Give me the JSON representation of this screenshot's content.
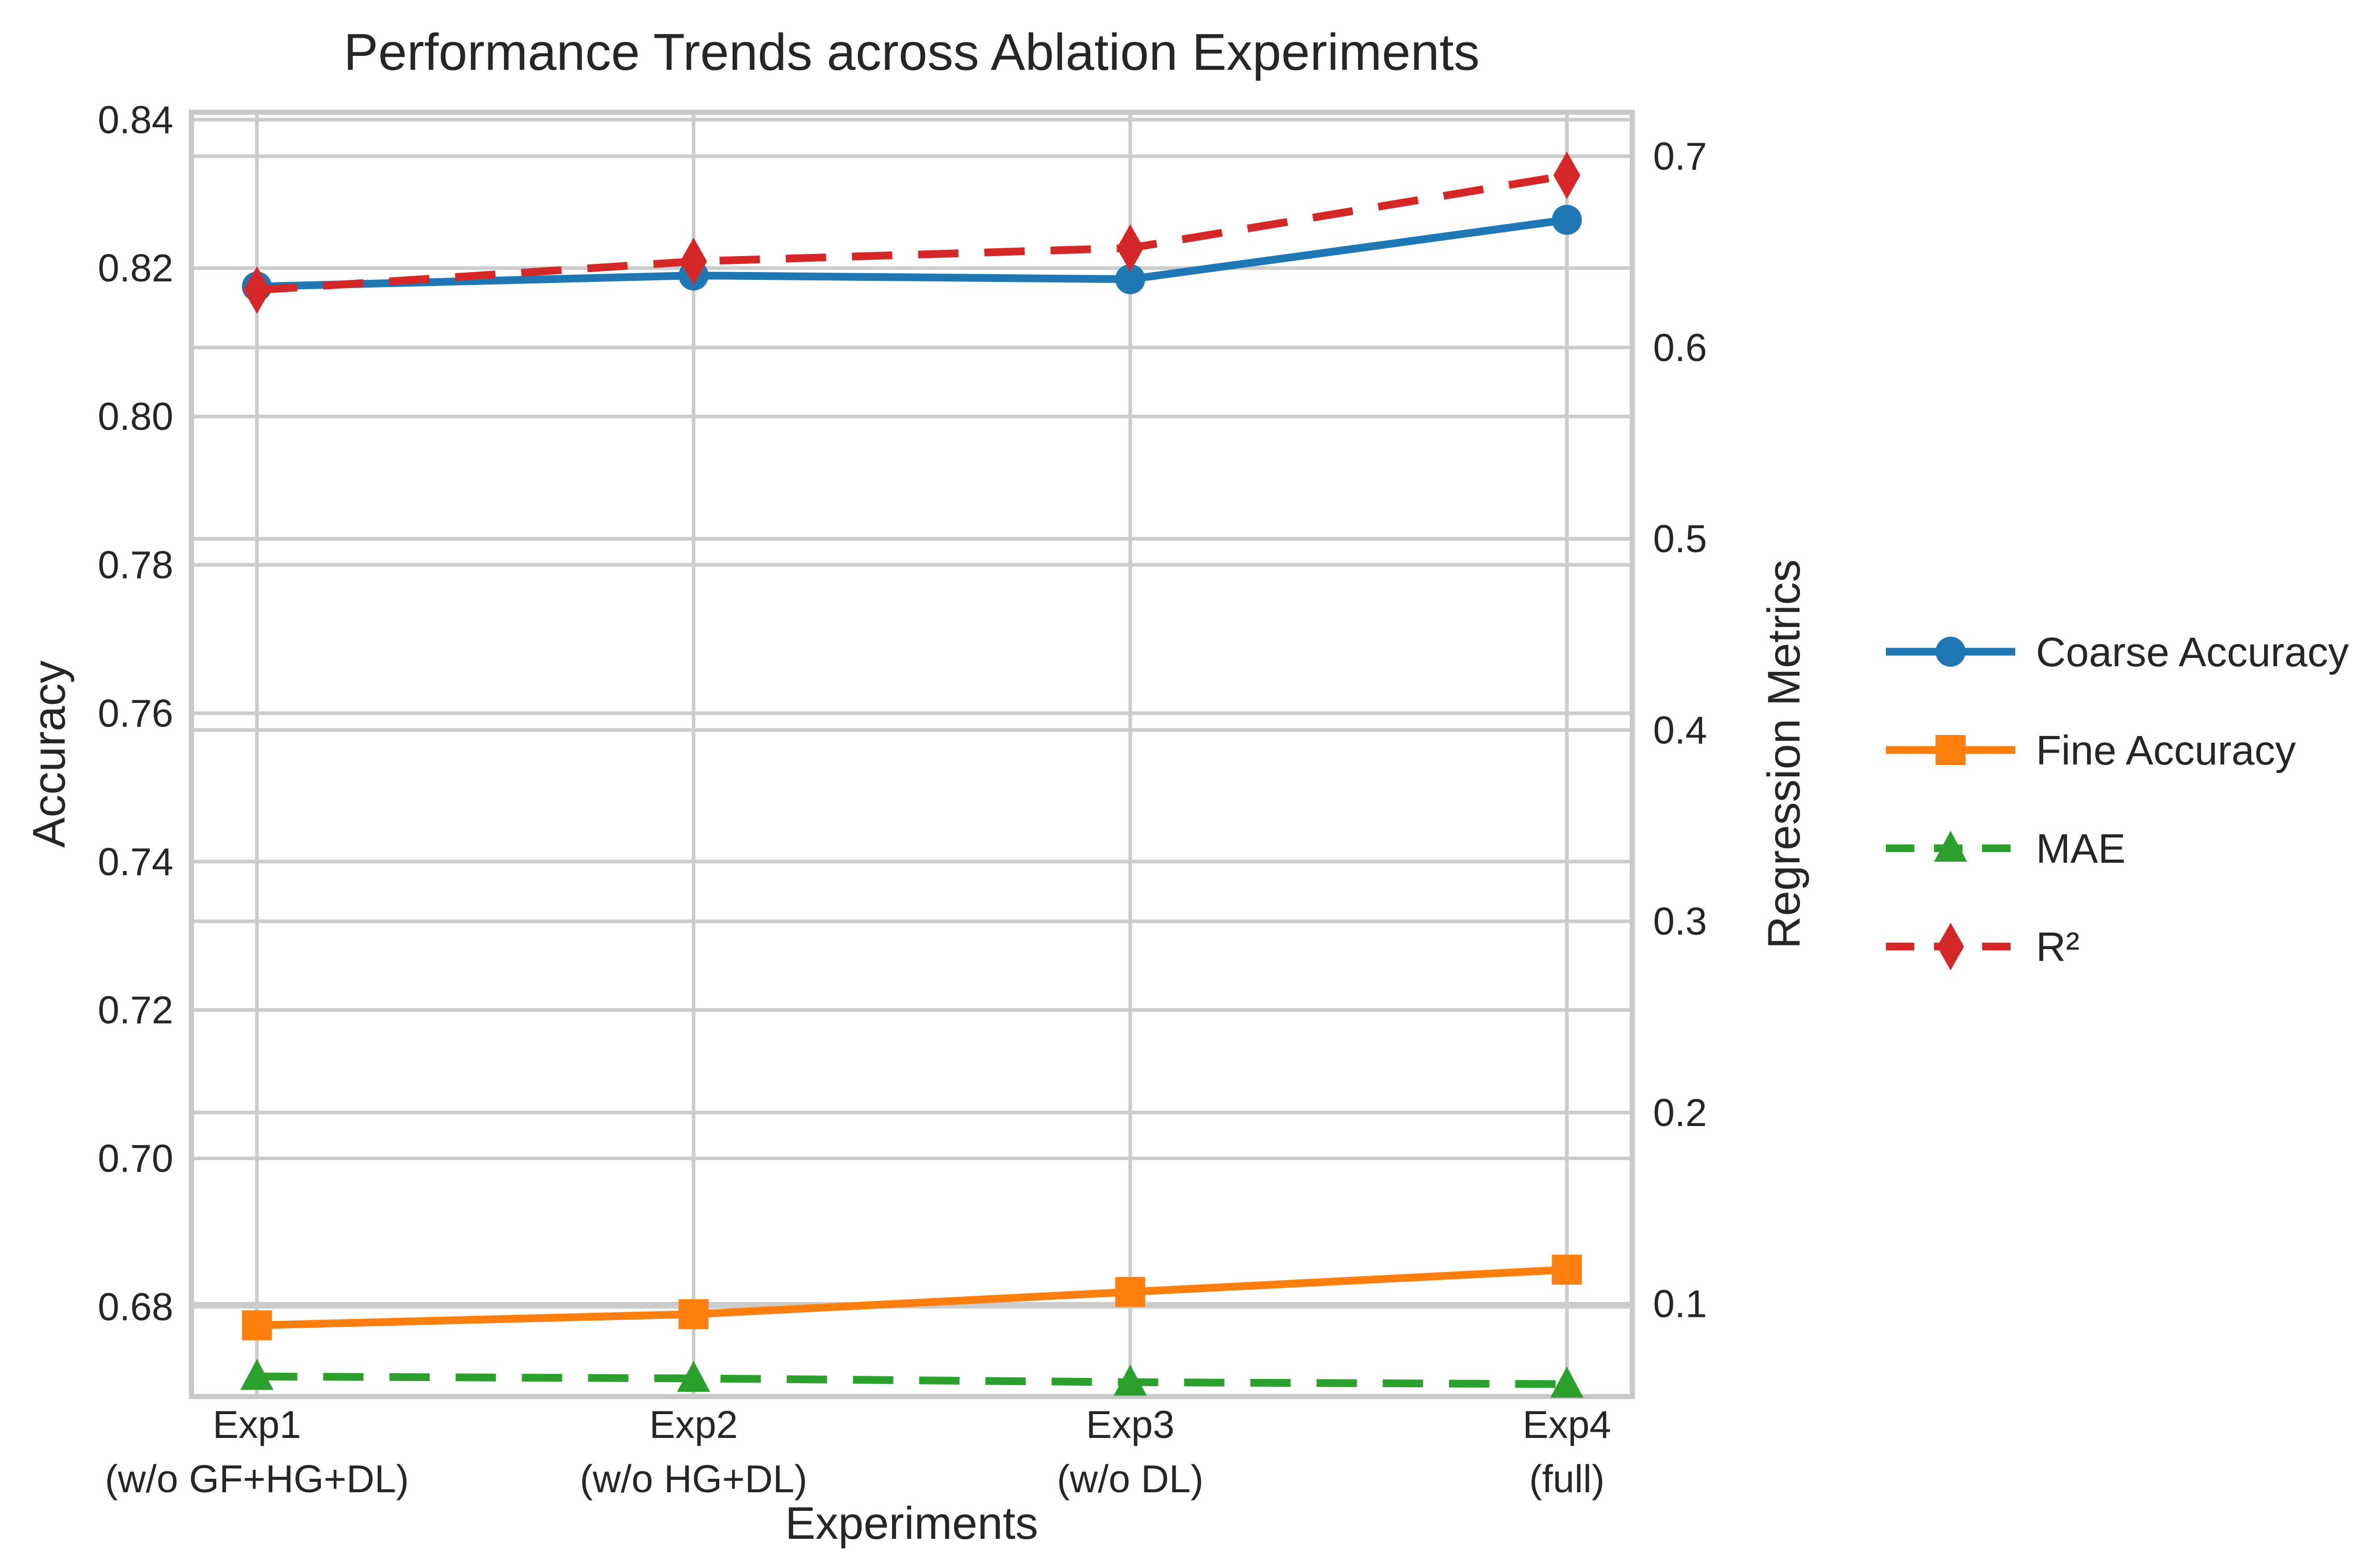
{
  "title": "Performance Trends across Ablation Experiments",
  "colors": {
    "background": "#ffffff",
    "grid": "#cccccc",
    "spine": "#c9c9c9",
    "text": "#262626",
    "blue": "#1f77b4",
    "orange": "#ff7f0e",
    "green": "#2ca02c",
    "red": "#d62728"
  },
  "chart_data": {
    "type": "line",
    "title": "Performance Trends across Ablation Experiments",
    "xlabel": "Experiments",
    "ylabel_left": "Accuracy",
    "ylabel_right": "Regression Metrics",
    "categories": [
      [
        "Exp1",
        "(w/o GF+HG+DL)"
      ],
      [
        "Exp2",
        "(w/o HG+DL)"
      ],
      [
        "Exp3",
        "(w/o DL)"
      ],
      [
        "Exp4",
        "(full)"
      ]
    ],
    "series": [
      {
        "name": "Coarse Accuracy",
        "axis": "left",
        "color": "#1f77b4",
        "marker": "circle",
        "line_style": "solid",
        "values": [
          0.8175,
          0.819,
          0.8185,
          0.8265
        ]
      },
      {
        "name": "Fine Accuracy",
        "axis": "left",
        "color": "#ff7f0e",
        "marker": "square",
        "line_style": "solid",
        "values": [
          0.6775,
          0.679,
          0.682,
          0.685
        ]
      },
      {
        "name": "MAE",
        "axis": "right",
        "color": "#2ca02c",
        "marker": "triangle",
        "line_style": "dashed",
        "values": [
          0.062,
          0.061,
          0.059,
          0.058
        ]
      },
      {
        "name": "R²",
        "axis": "right",
        "color": "#d62728",
        "marker": "diamond",
        "line_style": "dashed",
        "values": [
          0.63,
          0.645,
          0.652,
          0.69
        ]
      }
    ],
    "left_axis": {
      "lim": [
        0.6679,
        0.841
      ],
      "ticks": [
        0.68,
        0.7,
        0.72,
        0.74,
        0.76,
        0.78,
        0.8,
        0.82,
        0.84
      ],
      "tick_decimals": 2
    },
    "right_axis": {
      "lim": [
        0.0515,
        0.723
      ],
      "ticks": [
        0.1,
        0.2,
        0.3,
        0.4,
        0.5,
        0.6,
        0.7
      ],
      "tick_decimals": 1
    },
    "grid": true,
    "legend_position": "center right"
  }
}
